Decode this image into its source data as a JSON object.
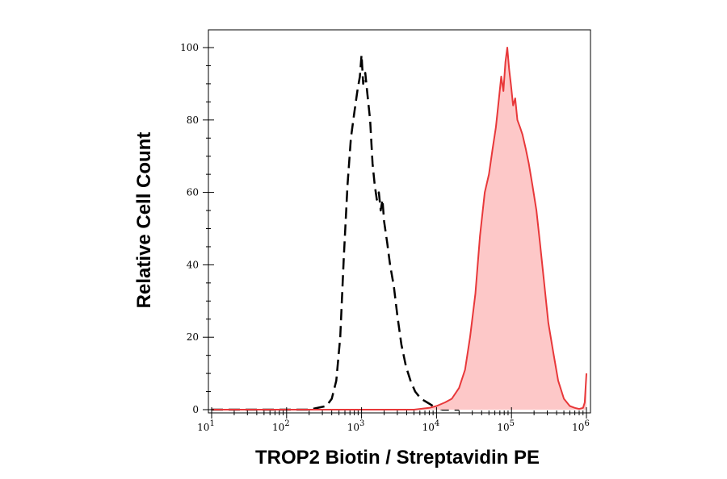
{
  "chart_data": {
    "type": "area",
    "xlabel": "TROP2 Biotin / Streptavidin PE",
    "ylabel": "Relative Cell Count",
    "x_scale": "log",
    "xlim": [
      10,
      1000000
    ],
    "ylim": [
      0,
      100
    ],
    "x_ticks": [
      {
        "value": 10,
        "base": "10",
        "exp": "1"
      },
      {
        "value": 100,
        "base": "10",
        "exp": "2"
      },
      {
        "value": 1000,
        "base": "10",
        "exp": "3"
      },
      {
        "value": 10000,
        "base": "10",
        "exp": "4"
      },
      {
        "value": 100000,
        "base": "10",
        "exp": "5"
      },
      {
        "value": 1000000,
        "base": "10",
        "exp": "6"
      }
    ],
    "y_ticks": [
      0,
      20,
      40,
      60,
      80,
      100
    ],
    "grid": false,
    "series": [
      {
        "style": "dashed",
        "color": "#000000",
        "fill": false,
        "x": [
          10,
          200,
          340,
          400,
          460,
          520,
          580,
          650,
          720,
          800,
          880,
          950,
          1000,
          1050,
          1120,
          1200,
          1300,
          1400,
          1500,
          1600,
          1700,
          1800,
          1900,
          2000,
          2200,
          2400,
          2700,
          3000,
          3400,
          3900,
          4500,
          5200,
          6200,
          7500,
          9000,
          12000,
          20000
        ],
        "y": [
          0,
          0,
          1,
          3,
          8,
          20,
          42,
          62,
          75,
          82,
          88,
          92,
          98,
          90,
          93,
          87,
          80,
          68,
          62,
          58,
          60,
          55,
          58,
          52,
          46,
          40,
          34,
          26,
          18,
          12,
          8,
          5,
          3,
          2,
          1,
          0,
          0
        ]
      },
      {
        "style": "solid",
        "color": "#e8383a",
        "fill": true,
        "fill_color": "#fdc8c8",
        "x": [
          10,
          5000,
          8000,
          10000,
          13000,
          16000,
          20000,
          24000,
          28000,
          33000,
          38000,
          44000,
          50000,
          56000,
          62000,
          68000,
          73000,
          78000,
          83000,
          88000,
          93000,
          98000,
          105000,
          112000,
          120000,
          130000,
          140000,
          155000,
          170000,
          190000,
          215000,
          240000,
          270000,
          310000,
          360000,
          420000,
          500000,
          600000,
          700000,
          800000,
          900000,
          950000,
          1000000
        ],
        "y": [
          0,
          0,
          0.5,
          1,
          2,
          3,
          6,
          11,
          20,
          32,
          48,
          60,
          65,
          72,
          78,
          86,
          92,
          88,
          96,
          100,
          94,
          90,
          84,
          86,
          80,
          78,
          76,
          72,
          68,
          62,
          55,
          46,
          36,
          24,
          16,
          8,
          3,
          1,
          0.5,
          0.2,
          0.5,
          2,
          10
        ]
      }
    ]
  }
}
